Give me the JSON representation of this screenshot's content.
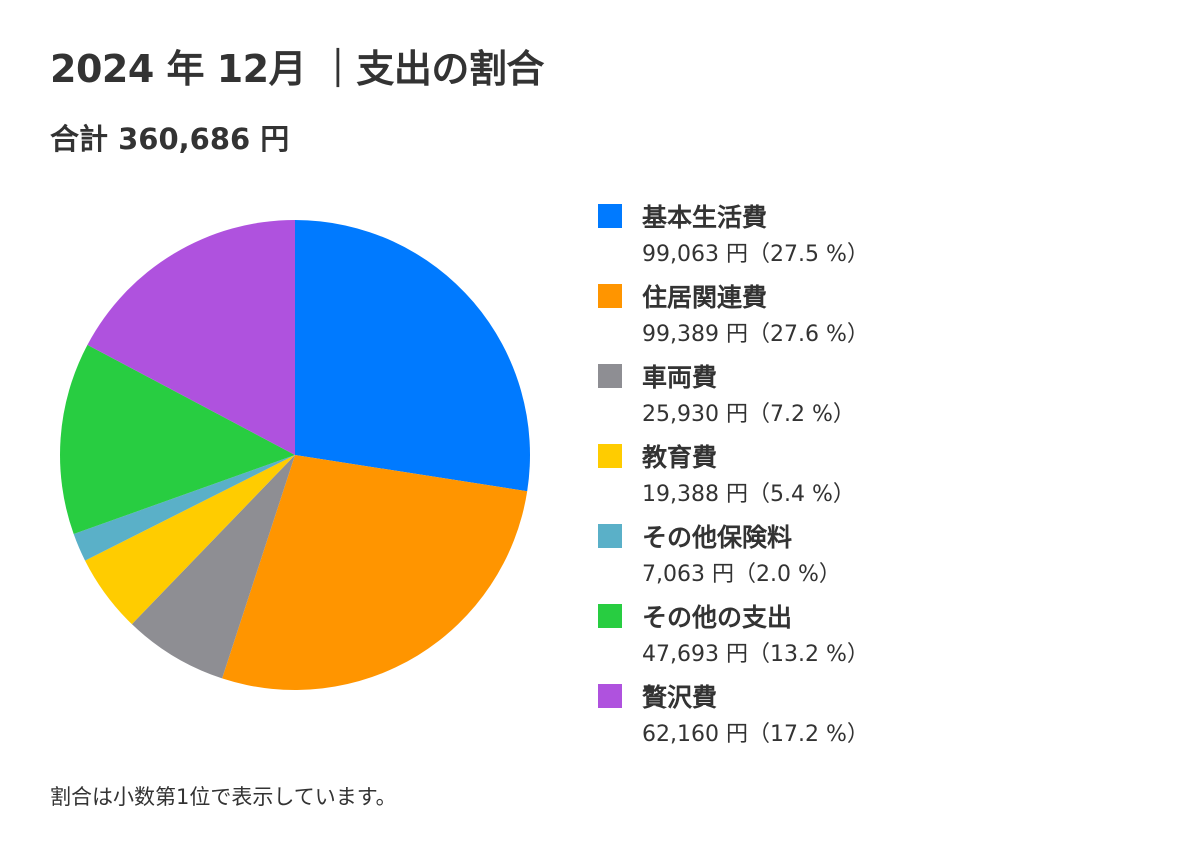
{
  "header": {
    "title": "2024 年 12月 ｜支出の割合",
    "total": "合計 360,686 円"
  },
  "footnote": "割合は小数第1位で表示しています。",
  "chart_data": {
    "type": "pie",
    "start": "12 o'clock",
    "direction": "clockwise",
    "legend_position": "right",
    "slices": [
      {
        "label": "基本生活費",
        "value": 99063,
        "value_text": "99,063 円（27.5 %）",
        "color": "#007AFF"
      },
      {
        "label": "住居関連費",
        "value": 99389,
        "value_text": "99,389 円（27.6 %）",
        "color": "#FF9500"
      },
      {
        "label": "車両費",
        "value": 25930,
        "value_text": "25,930 円（7.2 %）",
        "color": "#8E8E93"
      },
      {
        "label": "教育費",
        "value": 19388,
        "value_text": "19,388 円（5.4 %）",
        "color": "#FFCC00"
      },
      {
        "label": "その他保険料",
        "value": 7063,
        "value_text": "7,063 円（2.0 %）",
        "color": "#5AB0C8"
      },
      {
        "label": "その他の支出",
        "value": 47693,
        "value_text": "47,693 円（13.2 %）",
        "color": "#28CD41"
      },
      {
        "label": "贅沢費",
        "value": 62160,
        "value_text": "62,160 円（17.2 %）",
        "color": "#AF52DE"
      }
    ]
  }
}
